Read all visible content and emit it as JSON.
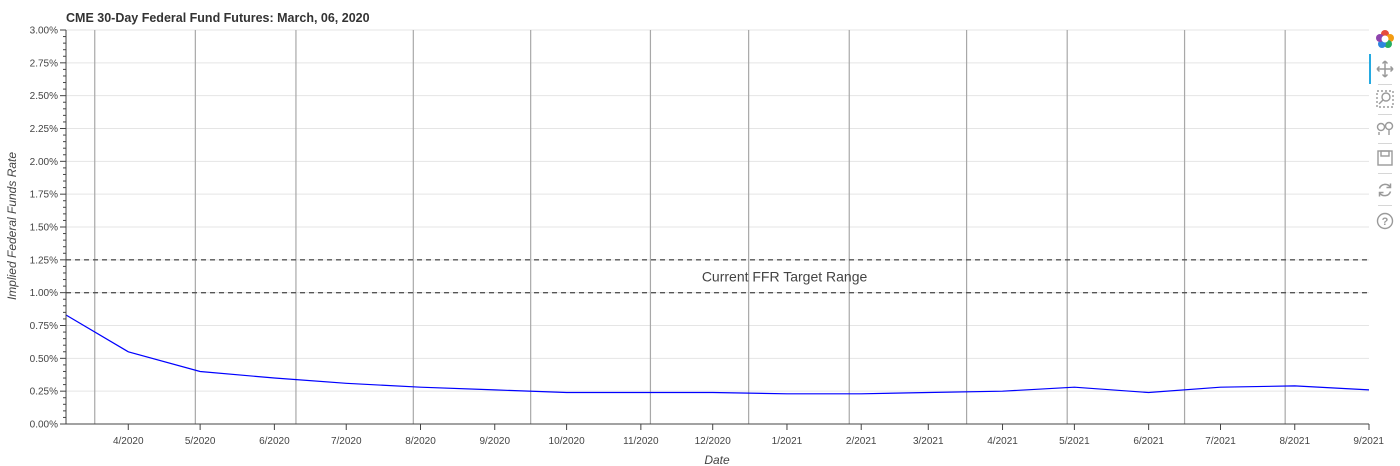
{
  "chart_data": {
    "type": "line",
    "title": "CME 30-Day Federal Fund Futures: March, 06, 2020",
    "xlabel": "Date",
    "ylabel": "Implied Federal Funds Rate",
    "y_tick_labels": [
      "0.00%",
      "0.25%",
      "0.50%",
      "0.75%",
      "1.00%",
      "1.25%",
      "1.50%",
      "1.75%",
      "2.00%",
      "2.25%",
      "2.50%",
      "2.75%",
      "3.00%"
    ],
    "x_tick_labels": [
      "4/2020",
      "5/2020",
      "6/2020",
      "7/2020",
      "8/2020",
      "9/2020",
      "10/2020",
      "11/2020",
      "12/2020",
      "1/2021",
      "2/2021",
      "3/2021",
      "4/2021",
      "5/2021",
      "6/2021",
      "7/2021",
      "8/2021",
      "9/2021"
    ],
    "ylim": [
      0,
      3.0
    ],
    "xlim": [
      "2020-03-06",
      "2021-09-01"
    ],
    "grid": true,
    "series": [
      {
        "color": "#0000ff",
        "x": [
          "2020-03-06",
          "2020-04-01",
          "2020-05-01",
          "2020-06-01",
          "2020-07-01",
          "2020-08-01",
          "2020-09-01",
          "2020-10-01",
          "2020-11-01",
          "2020-12-01",
          "2021-01-01",
          "2021-02-01",
          "2021-03-01",
          "2021-04-01",
          "2021-05-01",
          "2021-06-01",
          "2021-07-01",
          "2021-08-01",
          "2021-09-01"
        ],
        "values": [
          0.83,
          0.55,
          0.4,
          0.35,
          0.31,
          0.28,
          0.26,
          0.24,
          0.24,
          0.24,
          0.23,
          0.23,
          0.24,
          0.25,
          0.28,
          0.24,
          0.28,
          0.29,
          0.26
        ]
      }
    ],
    "reference_lines": [
      {
        "value": 1.25,
        "style": "dashed",
        "color": "#555555"
      },
      {
        "value": 1.0,
        "style": "dashed",
        "color": "#555555"
      }
    ],
    "annotations": [
      {
        "text": "Current FFR Target Range",
        "x": "2020-12-31",
        "y": 1.125
      }
    ],
    "vertical_lines": [
      "2020-03-18",
      "2020-04-29",
      "2020-06-10",
      "2020-07-29",
      "2020-09-16",
      "2020-11-05",
      "2020-12-16",
      "2021-01-27",
      "2021-03-17",
      "2021-04-28",
      "2021-06-16",
      "2021-07-28"
    ]
  },
  "toolbar": {
    "items": [
      "bokeh-logo",
      "pan-icon",
      "box-zoom-icon",
      "hover-icon",
      "save-icon",
      "reset-icon",
      "help-icon"
    ]
  }
}
